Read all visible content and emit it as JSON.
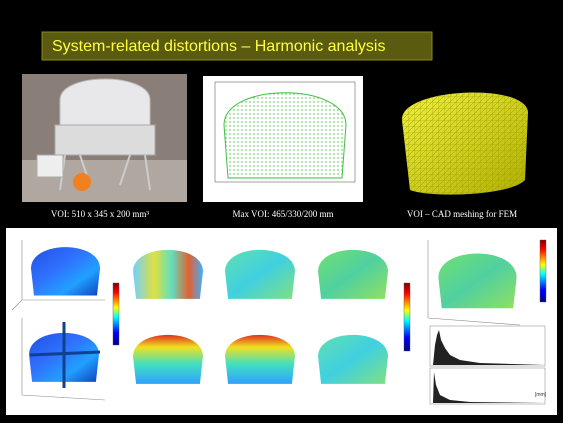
{
  "header": {
    "title": "System-related distortions – Harmonic analysis"
  },
  "captions": [
    "VOI: 510 x 345 x 200 mm³",
    "Max VOI: 465/330/200 mm",
    "VOI – CAD meshing for FEM"
  ],
  "histogram_unit": "[mm]"
}
